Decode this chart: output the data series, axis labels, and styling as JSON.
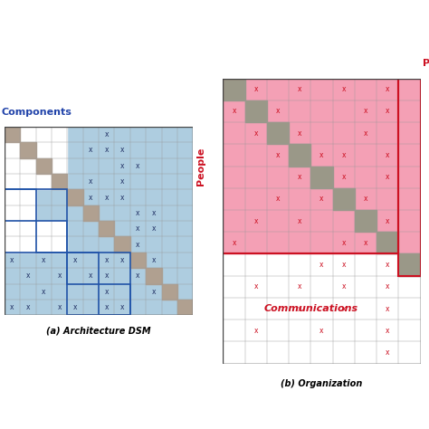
{
  "title_left": "(a) Architecture DSM",
  "title_right": "(b) Organization",
  "label_top_left": "Components",
  "label_top_right": "Peo",
  "label_left_right": "People",
  "label_comm": "Communications",
  "left_bg_color": "#aecde0",
  "left_diag_color": "#b0a090",
  "left_box_border": "#2255aa",
  "left_white_color": "#ffffff",
  "right_top_color": "#f4a0b5",
  "right_diag_color": "#9a9888",
  "right_border_color": "#cc1122",
  "x_mark_color_left": "#223366",
  "x_mark_color_right": "#cc1122",
  "figsize": [
    4.74,
    4.74
  ],
  "dpi": 100
}
